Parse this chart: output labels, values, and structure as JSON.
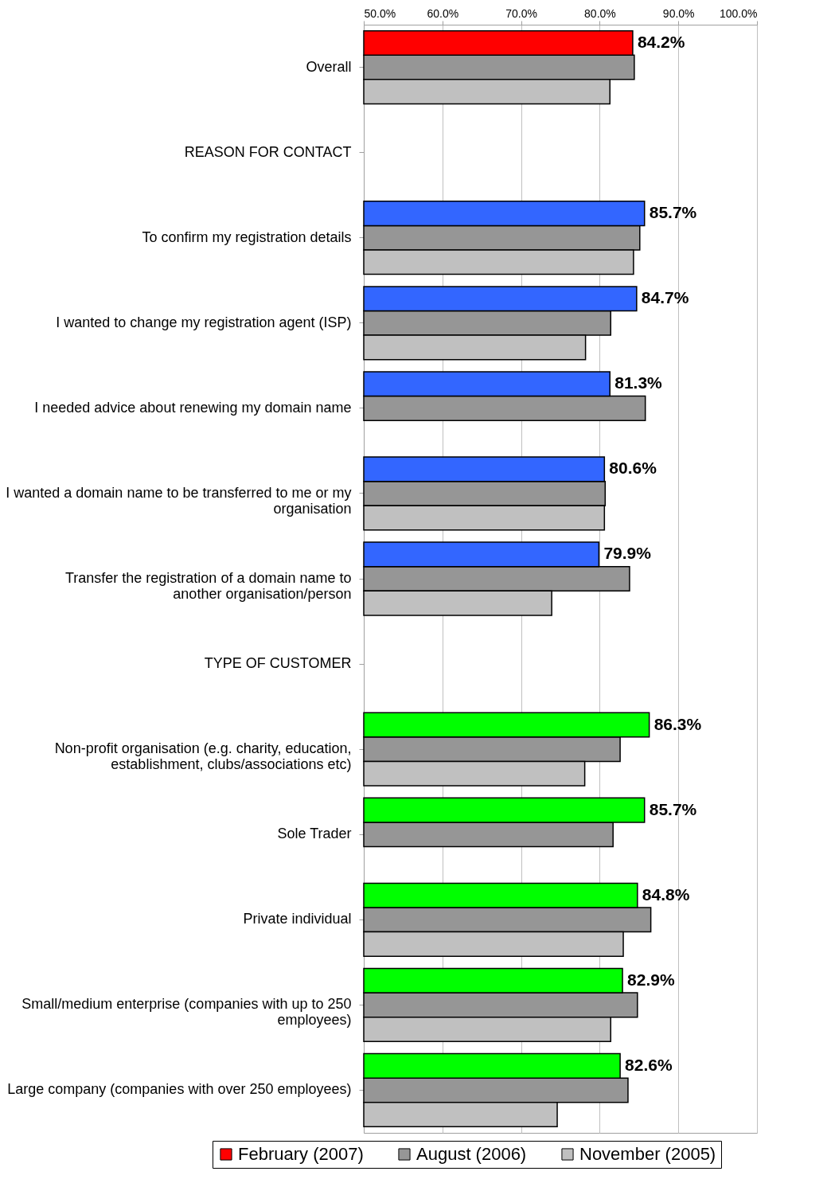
{
  "chart_data": {
    "type": "bar",
    "orientation": "horizontal",
    "categories": [
      "Overall",
      "REASON FOR CONTACT",
      "To confirm my registration details",
      "I wanted to change my registration agent (ISP)",
      "I needed advice about renewing my domain name",
      "I wanted a domain name to be transferred to me or my organisation",
      "Transfer the registration of a domain name to another organisation/person",
      "TYPE OF CUSTOMER",
      "Non-profit organisation (e.g. charity, education, establishment, clubs/associations etc)",
      "Sole Trader",
      "Private individual",
      "Small/medium enterprise (companies with up to 250 employees)",
      "Large company (companies with over 250 employees)"
    ],
    "series": [
      {
        "name": "February (2007)",
        "color": "#ff0000",
        "colors": [
          "#ff0000",
          null,
          "#3366ff",
          "#3366ff",
          "#3366ff",
          "#3366ff",
          "#3366ff",
          null,
          "#00ff00",
          "#00ff00",
          "#00ff00",
          "#00ff00",
          "#00ff00"
        ],
        "values": [
          84.2,
          null,
          85.7,
          84.7,
          81.3,
          80.6,
          79.9,
          null,
          86.3,
          85.7,
          84.8,
          82.9,
          82.6
        ],
        "value_labels": [
          "84.2%",
          null,
          "85.7%",
          "84.7%",
          "81.3%",
          "80.6%",
          "79.9%",
          null,
          "86.3%",
          "85.7%",
          "84.8%",
          "82.9%",
          "82.6%"
        ]
      },
      {
        "name": "August (2006)",
        "color": "#969696",
        "values": [
          84.4,
          null,
          85.1,
          81.4,
          85.8,
          80.7,
          83.8,
          null,
          82.6,
          81.7,
          86.5,
          84.8,
          83.6
        ]
      },
      {
        "name": "November (2005)",
        "color": "#c0c0c0",
        "values": [
          81.3,
          null,
          84.3,
          78.2,
          null,
          80.6,
          73.9,
          null,
          78.1,
          null,
          83.0,
          81.4,
          74.6
        ]
      }
    ],
    "xlim": [
      50,
      100
    ],
    "xticks": [
      {
        "value": 50,
        "label": "50.0%"
      },
      {
        "value": 60,
        "label": "60.0%"
      },
      {
        "value": 70,
        "label": "70.0%"
      },
      {
        "value": 80,
        "label": "80.0%"
      },
      {
        "value": 90,
        "label": "90.0%"
      },
      {
        "value": 100,
        "label": "100.0%"
      }
    ],
    "grid": "x",
    "legend": "bottom"
  }
}
